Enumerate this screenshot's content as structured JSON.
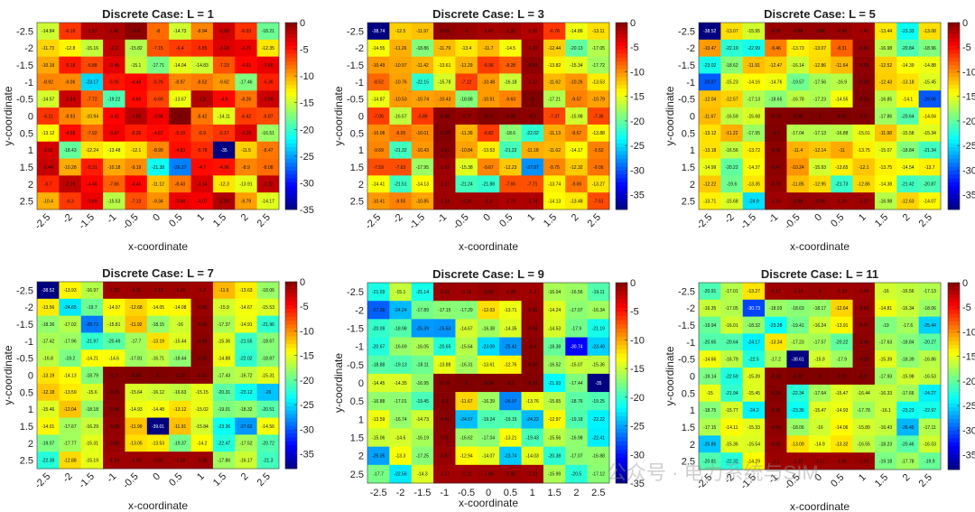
{
  "watermark": "公众号 · 电力系统与SIM",
  "chart_data": [
    {
      "type": "heatmap",
      "title": "Discrete Case: L = 1",
      "xlabel": "x-coordinate",
      "ylabel": "y-coordinate",
      "x": [
        -2.5,
        -2,
        -1.5,
        -1,
        -0.5,
        0,
        0.5,
        1,
        1.5,
        2,
        2.5
      ],
      "y": [
        -2.5,
        -2,
        -1.5,
        -1,
        -0.5,
        0,
        0.5,
        1,
        1.5,
        2,
        2.5
      ],
      "colorbar_ticks": [
        0,
        -5,
        -10,
        -15,
        -20,
        -25,
        -30,
        -35
      ],
      "clim": [
        -35,
        0
      ],
      "colormap": "jet",
      "z": [
        [
          -14.84,
          -6.18,
          -1.67,
          -1.41,
          -0.4,
          -8,
          -14.73,
          -8.94,
          -2.68,
          -6.03,
          -18.21
        ],
        [
          -11.73,
          -12.8,
          -15.16,
          -2.3,
          -15.82,
          -7.15,
          -6.4,
          -5.85,
          -3.18,
          -3.71,
          -12.35
        ],
        [
          -10.19,
          -5.18,
          -6.88,
          -3.45,
          -15.1,
          -17.71,
          -14.04,
          -14.83,
          -7.23,
          -4.61,
          -3.66
        ],
        [
          -8.92,
          -9.06,
          -23.17,
          -5.05,
          -4.48,
          -5.76,
          -8.97,
          -8.52,
          -9.62,
          -17.46,
          -5.36
        ],
        [
          -14.57,
          -2.54,
          -7.72,
          -19.22,
          -4.66,
          -6.69,
          -13.67,
          -1.8,
          -4.6,
          -8.26,
          -2.59
        ],
        [
          -6.11,
          -8.93,
          -10.94,
          -4.41,
          -1.93,
          -3.94,
          0,
          -8.42,
          -14.11,
          -6.42,
          -6.87
        ],
        [
          -13.12,
          -4.68,
          -7.92,
          -3.97,
          -5.26,
          -4.67,
          -5.19,
          -6.9,
          -6.17,
          -3.29,
          -16.51
        ],
        [
          -2.91,
          -18.43,
          -12.24,
          -13.48,
          -12.1,
          -8.99,
          -4.83,
          -5.78,
          -35,
          -11.5,
          -8.47
        ],
        [
          -2.44,
          -10.28,
          -5.31,
          -10.18,
          -9.19,
          -21.38,
          -26.27,
          -4.7,
          -4.96,
          -8.9,
          -8.08
        ],
        [
          -5.7,
          -2.19,
          -4.46,
          -7.66,
          -4.45,
          -11.12,
          -8.43,
          -3.14,
          -12.3,
          -13.91,
          -2.22
        ],
        [
          -10.4,
          -6.3,
          -3.69,
          -15.53,
          -7.13,
          -9.34,
          -3.64,
          -4.07,
          -1.59,
          -9.79,
          -14.17
        ]
      ]
    },
    {
      "type": "heatmap",
      "title": "Discrete Case: L = 3",
      "xlabel": "x-coordinate",
      "ylabel": "y-coordinate",
      "x": [
        -2.5,
        -2,
        -1.5,
        -1,
        -0.5,
        0,
        0.5,
        1,
        1.5,
        2,
        2.5
      ],
      "y": [
        -2.5,
        -2,
        -1.5,
        -1,
        -0.5,
        0,
        0.5,
        1,
        1.5,
        2,
        2.5
      ],
      "colorbar_ticks": [
        0,
        -5,
        -10,
        -15,
        -20,
        -25,
        -30,
        -35
      ],
      "clim": [
        -38,
        0
      ],
      "colormap": "jet",
      "z": [
        [
          -38.74,
          -12.5,
          -11.97,
          -0.69,
          -1,
          -1.47,
          -1.32,
          -1.92,
          -6.78,
          -14.86,
          -13.11
        ],
        [
          -14.55,
          -11.26,
          -18.86,
          -11.79,
          -13.4,
          -11.7,
          -14.5,
          -1.18,
          -12.44,
          -20.13,
          -17.05
        ],
        [
          -10.49,
          -10.97,
          -11.42,
          -13.61,
          -11.29,
          -6.96,
          -8.28,
          -0.54,
          -13.82,
          -15.34,
          -17.72
        ],
        [
          -8.52,
          -10.76,
          -22.15,
          -15.78,
          -7.12,
          -10.48,
          -16.18,
          -1.12,
          -11.62,
          -10.26,
          -13.53
        ],
        [
          -14.87,
          -10.53,
          -10.74,
          -10.43,
          -18.88,
          -10.51,
          -9.63,
          0,
          -17.21,
          -9.57,
          -10.79
        ],
        [
          -7.06,
          -16.57,
          -6.88,
          -0.38,
          -0.77,
          -0.17,
          -0.34,
          -0.5,
          -7.37,
          -15.98,
          -7.36
        ],
        [
          -10.08,
          -9.05,
          -10.01,
          -0.18,
          -11.39,
          -6.82,
          -18.6,
          -22.02,
          -11.13,
          -9.67,
          -13.88
        ],
        [
          -9.69,
          -21.32,
          -10.43,
          -0.37,
          -10.84,
          -13.53,
          -21.22,
          -11.18,
          -11.62,
          -14.17,
          -9.52
        ],
        [
          -7.59,
          -7.63,
          -17.95,
          -1.07,
          -15.38,
          -9.67,
          -12.23,
          -27.87,
          -9.75,
          -12.32,
          -9.06
        ],
        [
          -14.41,
          -21.51,
          -14.13,
          -1.17,
          -21.24,
          -21.88,
          -7.66,
          -7.71,
          -13.74,
          -9.06,
          -13.27
        ],
        [
          -10.41,
          -9.55,
          -10.85,
          -1.14,
          -1.26,
          -1.3,
          -1.73,
          -1.74,
          -14.13,
          -13.48,
          -7.51
        ]
      ]
    },
    {
      "type": "heatmap",
      "title": "Discrete Case: L = 5",
      "xlabel": "x-coordinate",
      "ylabel": "y-coordinate",
      "x": [
        -2.5,
        -2,
        -1.5,
        -1,
        -0.5,
        0,
        0.5,
        1,
        1.5,
        2,
        2.5
      ],
      "y": [
        -2.5,
        -2,
        -1.5,
        -1,
        -0.5,
        0,
        0.5,
        1,
        1.5,
        2,
        2.5
      ],
      "colorbar_ticks": [
        0,
        -5,
        -10,
        -15,
        -20,
        -25,
        -30,
        -35
      ],
      "clim": [
        -38,
        0
      ],
      "colormap": "jet",
      "z": [
        [
          -38.52,
          -13.07,
          -15.95,
          -0.95,
          -0.88,
          -0.84,
          -0.98,
          -1.41,
          -13.44,
          -23.33,
          -13.08
        ],
        [
          -10.47,
          -22.19,
          -22.99,
          -9.46,
          -13.73,
          -13.07,
          -8.31,
          -0.83,
          -16.98,
          -20.84,
          -18.96
        ],
        [
          -23.02,
          -18.62,
          -11.91,
          -12.47,
          -16.14,
          -12.86,
          -11.64,
          -0.54,
          -12.52,
          -14.39,
          -14.88
        ],
        [
          -29.87,
          -15.23,
          -14.16,
          -14.76,
          -19.57,
          -17.56,
          -16.9,
          -0.33,
          -12.43,
          -13.18,
          -15.45
        ],
        [
          -12.04,
          -12.57,
          -17.13,
          -18.65,
          -16.78,
          -17.23,
          -14.55,
          -0.14,
          -16.85,
          -14.1,
          -29.96
        ],
        [
          -11.67,
          -16.59,
          -15.68,
          -0.23,
          -0.06,
          0,
          -0.02,
          -0.17,
          -17.86,
          -20.64,
          -14.04
        ],
        [
          -13.12,
          -11.22,
          -17.95,
          -0.1,
          -17.04,
          -17.13,
          -16.88,
          -15.01,
          -11.98,
          -15.58,
          -15.34
        ],
        [
          -13.18,
          -16.56,
          -13.72,
          -0.45,
          -11.4,
          -12.14,
          -11,
          -13.75,
          -15.07,
          -18.84,
          -21.34
        ],
        [
          -14.99,
          -20.22,
          -14.37,
          -0.47,
          -10.24,
          -15.93,
          -13.65,
          -12.1,
          -13.75,
          -14.54,
          -13.7
        ],
        [
          -12.22,
          -19.6,
          -13.35,
          -0.79,
          -11.85,
          -12.95,
          -21.73,
          -12.86,
          -14.38,
          -21.42,
          -20.87
        ],
        [
          -13.71,
          -15.68,
          -24.9,
          -1.23,
          -0.88,
          -0.96,
          -1.24,
          -1.17,
          -16.98,
          -12.63,
          -14.07
        ]
      ]
    },
    {
      "type": "heatmap",
      "title": "Discrete Case: L = 7",
      "xlabel": "x-coordinate",
      "ylabel": "y-coordinate",
      "x": [
        -2.5,
        -2,
        -1.5,
        -1,
        -0.5,
        0,
        0.5,
        1,
        1.5,
        2,
        2.5
      ],
      "y": [
        -2.5,
        -2,
        -1.5,
        -1,
        -0.5,
        0,
        0.5,
        1,
        1.5,
        2,
        2.5
      ],
      "colorbar_ticks": [
        0,
        -5,
        -10,
        -15,
        -20,
        -25,
        -30,
        -35
      ],
      "clim": [
        -38,
        0
      ],
      "colormap": "jet",
      "z": [
        [
          -38.52,
          -13.93,
          -16.97,
          -1.22,
          -1.11,
          -1.12,
          -1.15,
          -1.2,
          -11.6,
          -13.63,
          -18.06
        ],
        [
          -13.56,
          -24.65,
          -19.7,
          -14.07,
          -12.68,
          -14.05,
          -14.08,
          -0.95,
          -15.9,
          -14.67,
          -15.53
        ],
        [
          -18.36,
          -17.02,
          -28.73,
          -15.81,
          -11.92,
          -18.15,
          -16,
          -0.65,
          -17.37,
          -14.91,
          -21.96
        ],
        [
          -17.42,
          -17.96,
          -21.97,
          -20.49,
          -17.7,
          -13.19,
          -15.44,
          -0.43,
          -15.36,
          -21.55,
          -18.67
        ],
        [
          -16.8,
          -19.2,
          -14.21,
          -14.6,
          -17.81,
          -16.71,
          -18.44,
          -0.25,
          -14.88,
          -22.02,
          -18.87
        ],
        [
          -13.19,
          -14.13,
          -18.79,
          -0.27,
          -0.06,
          0,
          -0.15,
          -0.31,
          -17.43,
          -16.72,
          -15.31
        ],
        [
          -12.18,
          -13.59,
          -15.6,
          -0.29,
          -15.64,
          -16.12,
          -16.63,
          -15.15,
          -20.31,
          -23.12,
          -26
        ],
        [
          -15.46,
          -12.04,
          -18.18,
          -0.48,
          -14.93,
          -14.48,
          -13.12,
          -15.02,
          -19.01,
          -18.32,
          -20.51
        ],
        [
          -14.01,
          -17.67,
          -16.29,
          -0.68,
          -11.99,
          -39.01,
          -11.91,
          -15.84,
          -23.36,
          -27.62,
          -14.56
        ],
        [
          -19.07,
          -17.77,
          -15.31,
          -0.85,
          -13.05,
          -13.53,
          -19.37,
          -14.2,
          -22.47,
          -17.52,
          -20.72
        ],
        [
          -22.39,
          -12.88,
          -15.19,
          -1.19,
          -1.13,
          -1.07,
          -1.16,
          -1.06,
          -17.86,
          -16.17,
          -21.3
        ]
      ]
    },
    {
      "type": "heatmap",
      "title": "Discrete Case: L = 9",
      "xlabel": "x-coordinate",
      "ylabel": "y-coordinate",
      "x": [
        -2.5,
        -2,
        -1.5,
        -1,
        -0.5,
        0,
        0.5,
        1,
        1.5,
        2,
        2.5
      ],
      "y": [
        -2.5,
        -2,
        -1.5,
        -1,
        -0.5,
        0,
        0.5,
        1,
        1.5,
        2,
        2.5
      ],
      "colorbar_ticks": [
        0,
        -5,
        -10,
        -15,
        -20,
        -25,
        -30,
        -35
      ],
      "clim": [
        -35,
        0
      ],
      "colormap": "jet",
      "z": [
        [
          -21.03,
          -15.1,
          -21.14,
          -1.01,
          -1.16,
          -0.89,
          -1.09,
          -1.2,
          -16.04,
          -16.56,
          -19.11
        ],
        [
          -27.38,
          -24.24,
          -17.89,
          -17.15,
          -17.29,
          -12.03,
          -13.71,
          -0.85,
          -14.24,
          -17.07,
          -16.34
        ],
        [
          -20.09,
          -18.98,
          -25.39,
          -25.53,
          -14.67,
          -16.38,
          -14.35,
          -0.65,
          -14.53,
          -17.9,
          -21.19
        ],
        [
          -20.67,
          -16.69,
          -16.05,
          -20.65,
          -15.64,
          -23.09,
          -25.42,
          -0.4,
          -18.38,
          -30.74,
          -23.49
        ],
        [
          -18.88,
          -19.13,
          -18.11,
          -13.88,
          -16.31,
          -13.61,
          -12.76,
          -0.26,
          -16.52,
          -15.07,
          -15.36
        ],
        [
          -14.45,
          -14.35,
          -16.95,
          -0.19,
          0,
          -0.04,
          -0.2,
          -0.15,
          -21.93,
          -17.44,
          -35
        ],
        [
          -16.88,
          -17.01,
          -19.45,
          -0.2,
          -11.67,
          -16.39,
          -26.07,
          -13.76,
          -15.65,
          -18.76,
          -19.25
        ],
        [
          -13.59,
          -16.74,
          -14.73,
          -0.41,
          -24.07,
          -19.24,
          -19.15,
          -24.22,
          -12.97,
          -19.18,
          -22.22
        ],
        [
          -15.06,
          -14.6,
          -16.19,
          -0.5,
          -16.62,
          -17.04,
          -13.21,
          -19.43,
          -15.56,
          -16.98,
          -22.41
        ],
        [
          -25.05,
          -13.3,
          -17.25,
          -0.87,
          -12.94,
          -14.07,
          -23.74,
          -14.03,
          -20.38,
          -17.07,
          -16.88
        ],
        [
          -17.7,
          -22.56,
          -14.3,
          -1.17,
          -1.12,
          -1.06,
          -1.05,
          -1.21,
          -15.99,
          -20.5,
          -17.12
        ]
      ]
    },
    {
      "type": "heatmap",
      "title": "Discrete Case: L = 11",
      "xlabel": "x-coordinate",
      "ylabel": "y-coordinate",
      "x": [
        -2.5,
        -2,
        -1.5,
        -1,
        -0.5,
        0,
        0.5,
        1,
        1.5,
        2,
        2.5
      ],
      "y": [
        -2.5,
        -2,
        -1.5,
        -1,
        -0.5,
        0,
        0.5,
        1,
        1.5,
        2,
        2.5
      ],
      "colorbar_ticks": [
        0,
        -5,
        -10,
        -15,
        -20,
        -25,
        -30,
        -35
      ],
      "clim": [
        -38,
        0
      ],
      "colormap": "jet",
      "z": [
        [
          -20.91,
          -17.01,
          -13.27,
          -1.17,
          -1.14,
          -1,
          -1.19,
          -1.05,
          -16,
          -16.56,
          -17.13
        ],
        [
          -16.35,
          -17.05,
          -30.73,
          -18.03,
          -18.63,
          -18.17,
          -12.64,
          -0.83,
          -14.81,
          -16.34,
          -18.06
        ],
        [
          -19.94,
          -16.01,
          -18.32,
          -23.28,
          -19.41,
          -16.24,
          -13.91,
          -0.67,
          -19,
          -17.6,
          -25.44
        ],
        [
          -20.65,
          -20.64,
          -24.17,
          -13.34,
          -17.23,
          -17.57,
          -20.22,
          -0.46,
          -17.63,
          -18.84,
          -20.27
        ],
        [
          -14.66,
          -16.79,
          -22.5,
          -17.2,
          -38.61,
          -15.9,
          -17.9,
          -0.29,
          -15.39,
          -18.39,
          -16.86
        ],
        [
          -19.14,
          -22.59,
          -15.39,
          -0.33,
          -0.02,
          0,
          -0.12,
          -0.17,
          -17.93,
          -15.98,
          -16.53
        ],
        [
          -15,
          -21.94,
          -15.45,
          -0.28,
          -22.34,
          -17.64,
          -15.47,
          -16.44,
          -16.33,
          -17.66,
          -24.27
        ],
        [
          -18.75,
          -15.77,
          -24.2,
          -0.41,
          -23.36,
          -15.47,
          -14.93,
          -17.78,
          -16.1,
          -23.23,
          -22.97
        ],
        [
          -17.15,
          -14.11,
          -15.33,
          -0.54,
          -18.06,
          -16,
          -14.06,
          -15.89,
          -16.43,
          -26.45,
          -17.11
        ],
        [
          -25.86,
          -15.36,
          -15.54,
          -0.85,
          -13.09,
          -14.9,
          -13.32,
          -16.55,
          -18.23,
          -20.46,
          -16.03
        ],
        [
          -20.81,
          -22.32,
          -14.29,
          -1.1,
          -1.12,
          -1.12,
          -1.06,
          -1.01,
          -19.18,
          -17.78,
          -19.9
        ]
      ]
    }
  ]
}
